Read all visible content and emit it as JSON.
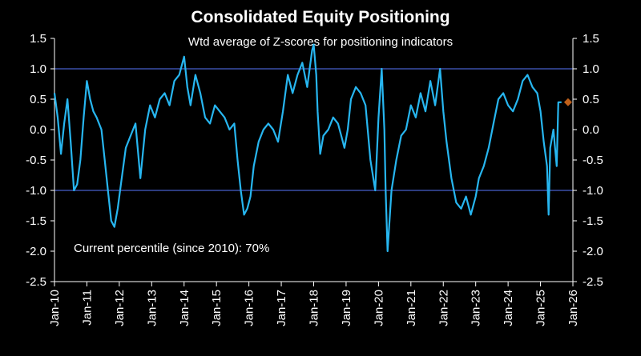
{
  "chart_data": {
    "type": "line",
    "title": "Consolidated Equity Positioning",
    "subtitle": "Wtd average of Z-scores for positioning indicators",
    "annotation": "Current percentile (since 2010): 70%",
    "xlabel": "",
    "ylabel": "",
    "ylim": [
      -2.5,
      1.5
    ],
    "yticks": [
      -2.5,
      -2.0,
      -1.5,
      -1.0,
      -0.5,
      0.0,
      0.5,
      1.0,
      1.5
    ],
    "ytick_labels": [
      "-2.5",
      "-2.0",
      "-1.5",
      "-1.0",
      "-0.5",
      "0.0",
      "0.5",
      "1.0",
      "1.5"
    ],
    "xlim": [
      2010,
      2026
    ],
    "xtick_labels": [
      "Jan-10",
      "Jan-11",
      "Jan-12",
      "Jan-13",
      "Jan-14",
      "Jan-15",
      "Jan-16",
      "Jan-17",
      "Jan-18",
      "Jan-19",
      "Jan-20",
      "Jan-21",
      "Jan-22",
      "Jan-23",
      "Jan-24",
      "Jan-25",
      "Jan-26"
    ],
    "reference_lines": [
      1.0,
      -1.0
    ],
    "grid": false,
    "colors": {
      "line": "#27b6f0",
      "marker": "#c0601a",
      "reference": "#3a4fa8",
      "axis": "#ffffff",
      "background": "#000000"
    },
    "series": [
      {
        "x": [
          2010.0,
          2010.1,
          2010.2,
          2010.3,
          2010.4,
          2010.5,
          2010.6,
          2010.7,
          2010.8,
          2010.9,
          2011.0,
          2011.1,
          2011.2,
          2011.3,
          2011.45,
          2011.55,
          2011.65,
          2011.75,
          2011.85,
          2011.95,
          2012.05,
          2012.2,
          2012.35,
          2012.5,
          2012.65,
          2012.8,
          2012.95,
          2013.1,
          2013.25,
          2013.4,
          2013.55,
          2013.7,
          2013.85,
          2014.0,
          2014.1,
          2014.2,
          2014.35,
          2014.5,
          2014.65,
          2014.8,
          2014.95,
          2015.1,
          2015.25,
          2015.4,
          2015.55,
          2015.65,
          2015.75,
          2015.85,
          2015.95,
          2016.05,
          2016.15,
          2016.3,
          2016.45,
          2016.6,
          2016.75,
          2016.9,
          2017.05,
          2017.2,
          2017.35,
          2017.5,
          2017.65,
          2017.8,
          2017.95,
          2018.0,
          2018.08,
          2018.12,
          2018.2,
          2018.3,
          2018.45,
          2018.6,
          2018.75,
          2018.85,
          2018.95,
          2019.05,
          2019.15,
          2019.3,
          2019.45,
          2019.6,
          2019.75,
          2019.9,
          2020.0,
          2020.1,
          2020.18,
          2020.22,
          2020.28,
          2020.4,
          2020.55,
          2020.7,
          2020.85,
          2021.0,
          2021.15,
          2021.3,
          2021.45,
          2021.6,
          2021.75,
          2021.9,
          2022.0,
          2022.1,
          2022.25,
          2022.4,
          2022.55,
          2022.7,
          2022.85,
          2023.0,
          2023.1,
          2023.25,
          2023.4,
          2023.55,
          2023.7,
          2023.85,
          2024.0,
          2024.15,
          2024.3,
          2024.45,
          2024.6,
          2024.75,
          2024.9,
          2025.0,
          2025.1,
          2025.2,
          2025.25,
          2025.3,
          2025.4,
          2025.5,
          2025.55,
          2025.65
        ],
        "values": [
          0.6,
          0.2,
          -0.4,
          0.1,
          0.5,
          -0.2,
          -1.0,
          -0.9,
          -0.5,
          0.2,
          0.8,
          0.5,
          0.3,
          0.2,
          0.0,
          -0.5,
          -1.0,
          -1.5,
          -1.6,
          -1.3,
          -0.9,
          -0.3,
          -0.1,
          0.1,
          -0.8,
          0.0,
          0.4,
          0.2,
          0.5,
          0.6,
          0.4,
          0.8,
          0.9,
          1.2,
          0.7,
          0.4,
          0.9,
          0.6,
          0.2,
          0.1,
          0.4,
          0.3,
          0.2,
          0.0,
          0.1,
          -0.5,
          -1.0,
          -1.4,
          -1.3,
          -1.1,
          -0.6,
          -0.2,
          0.0,
          0.1,
          0.0,
          -0.2,
          0.3,
          0.9,
          0.6,
          0.9,
          1.1,
          0.7,
          1.3,
          1.4,
          0.9,
          0.3,
          -0.4,
          -0.1,
          0.0,
          0.2,
          0.1,
          -0.1,
          -0.3,
          0.0,
          0.5,
          0.7,
          0.6,
          0.4,
          -0.5,
          -1.0,
          0.2,
          1.0,
          0.0,
          -1.0,
          -2.0,
          -1.0,
          -0.5,
          -0.1,
          0.0,
          0.4,
          0.2,
          0.6,
          0.3,
          0.8,
          0.4,
          1.0,
          0.3,
          -0.2,
          -0.8,
          -1.2,
          -1.3,
          -1.1,
          -1.4,
          -1.1,
          -0.8,
          -0.6,
          -0.3,
          0.1,
          0.5,
          0.6,
          0.4,
          0.3,
          0.5,
          0.8,
          0.9,
          0.7,
          0.6,
          0.3,
          -0.2,
          -0.6,
          -1.4,
          -0.3,
          0.0,
          -0.6,
          0.45,
          0.45
        ]
      }
    ],
    "marker_point": {
      "x": 2025.85,
      "value": 0.45
    }
  }
}
